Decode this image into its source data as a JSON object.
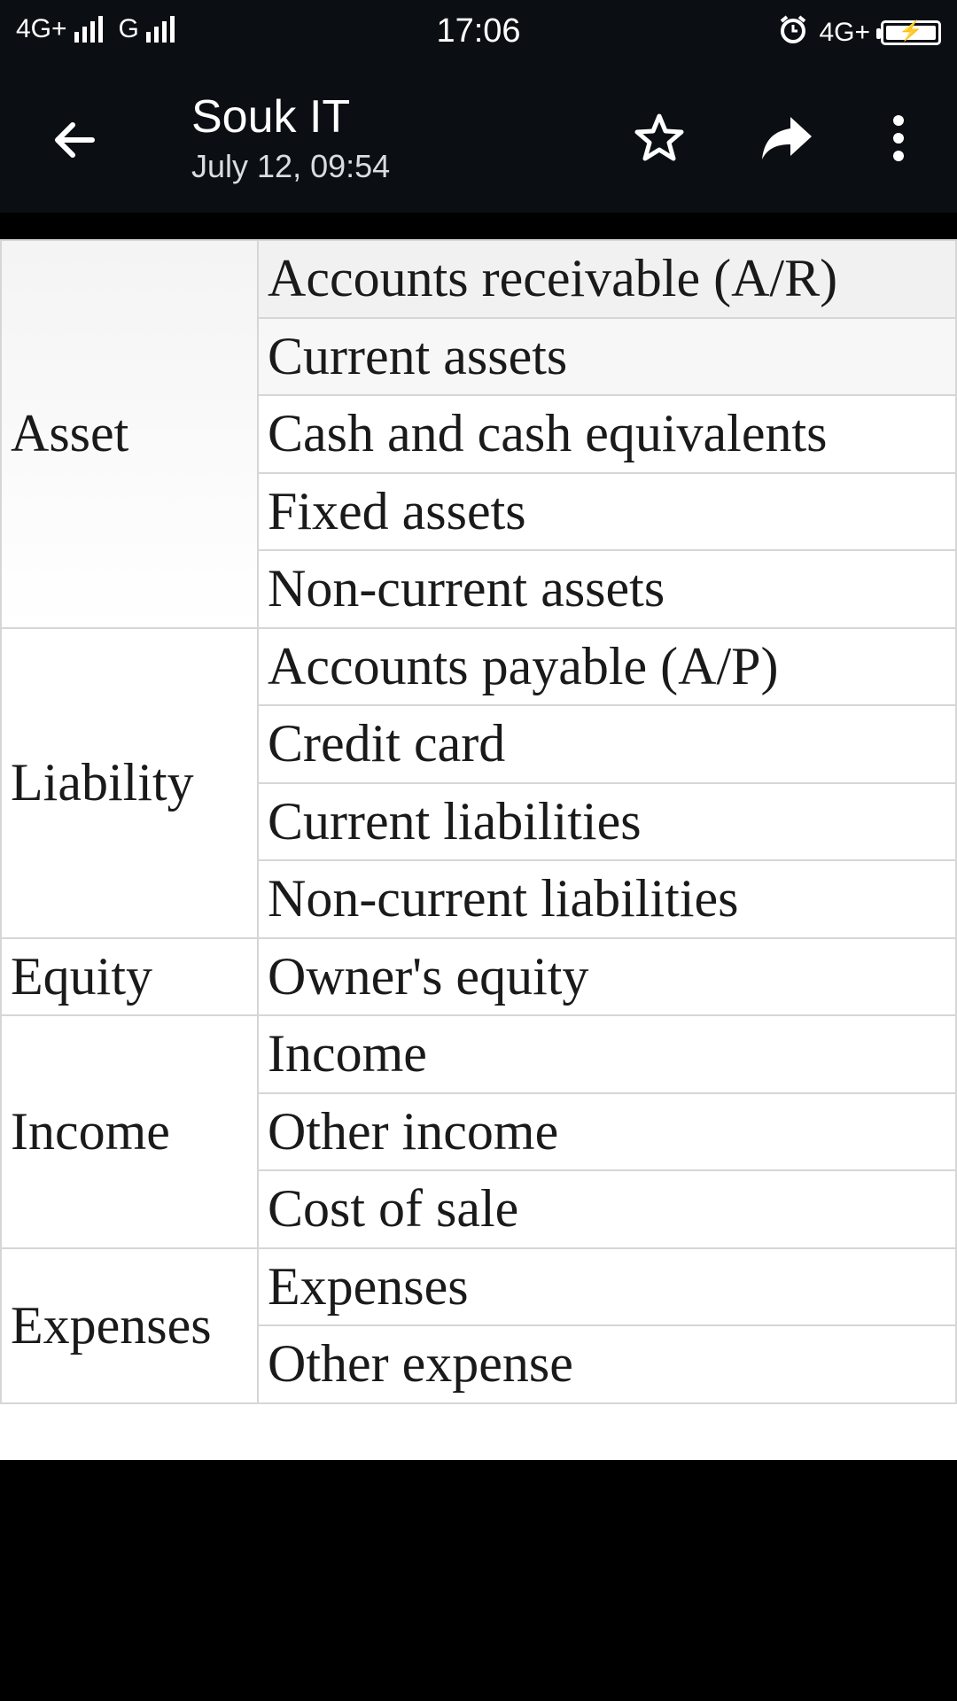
{
  "status_bar": {
    "network_left_1": "4G+",
    "network_left_2": "G",
    "time": "17:06",
    "network_right": "4G+",
    "battery_level": 1.0
  },
  "app_bar": {
    "title": "Souk IT",
    "subtitle": "July 12, 09:54",
    "icons": [
      "back-arrow-icon",
      "star-icon",
      "share-icon",
      "more-vert-icon"
    ]
  },
  "table": {
    "groups": [
      {
        "category": "Asset",
        "items": [
          "Accounts receivable (A/R)",
          "Current assets",
          "Cash and cash equivalents",
          "Fixed assets",
          "Non-current assets"
        ]
      },
      {
        "category": "Liability",
        "items": [
          "Accounts payable (A/P)",
          "Credit card",
          "Current liabilities",
          "Non-current liabilities"
        ]
      },
      {
        "category": "Equity",
        "items": [
          "Owner's equity"
        ]
      },
      {
        "category": "Income",
        "items": [
          "Income",
          "Other income",
          "Cost of sale"
        ]
      },
      {
        "category": "Expenses",
        "items": [
          "Expenses",
          "Other expense"
        ]
      }
    ]
  },
  "colors": {
    "bar_background": "#0b0f14",
    "text_on_bar": "#ffffff",
    "table_text": "#1a1a1a",
    "table_border": "#d6d6d6"
  }
}
